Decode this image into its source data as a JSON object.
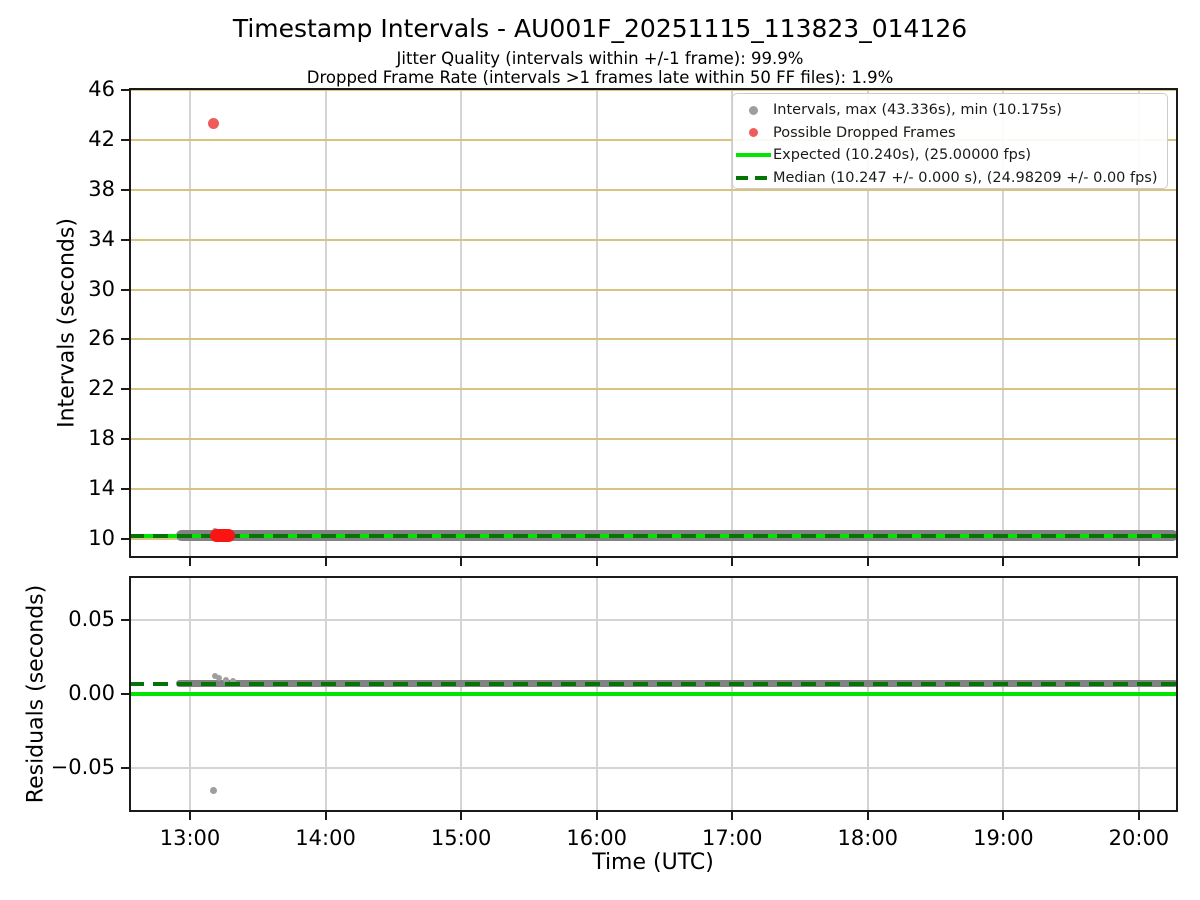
{
  "header": {
    "title": "Timestamp Intervals - AU001F_20251115_113823_014126",
    "subtitle1": "Jitter Quality (intervals within +/-1 frame): 99.9%",
    "subtitle2": "Dropped Frame Rate (intervals >1 frames late within 50 FF files): 1.9%"
  },
  "colors": {
    "expected_line": "#00e600",
    "median_line": "#067306",
    "intervals_point": "#9e9e9e",
    "intervals_dense": "#828282",
    "dropped_point": "#ee5c5c",
    "dropped_dense": "#fb1414",
    "grid_y_intervals": "#d8c47f",
    "grid_vertical": "#d4d4d4",
    "grid_residuals": "#d4d4d4",
    "spine": "#1a1a1a"
  },
  "legend": {
    "items": [
      {
        "label": "Intervals, max (43.336s), min (10.175s)",
        "marker": "dot-gray"
      },
      {
        "label": "Possible Dropped Frames",
        "marker": "dot-red"
      },
      {
        "label": "Expected (10.240s), (25.00000 fps)",
        "marker": "line-solid"
      },
      {
        "label": "Median (10.247 +/- 0.000 s), (24.98209 +/- 0.00 fps)",
        "marker": "line-dashed"
      }
    ]
  },
  "axes": {
    "x": {
      "label": "Time (UTC)",
      "lim_minutes": [
        753,
        1217.3
      ],
      "ticks": [
        {
          "minute": 780,
          "label": "13:00"
        },
        {
          "minute": 840,
          "label": "14:00"
        },
        {
          "minute": 900,
          "label": "15:00"
        },
        {
          "minute": 960,
          "label": "16:00"
        },
        {
          "minute": 1020,
          "label": "17:00"
        },
        {
          "minute": 1080,
          "label": "18:00"
        },
        {
          "minute": 1140,
          "label": "19:00"
        },
        {
          "minute": 1200,
          "label": "20:00"
        }
      ]
    },
    "plot_intervals": {
      "ylabel": "Intervals (seconds)",
      "ylim": [
        8.48,
        46.16
      ],
      "yticks": [
        {
          "v": 10,
          "label": "10"
        },
        {
          "v": 14,
          "label": "14"
        },
        {
          "v": 18,
          "label": "18"
        },
        {
          "v": 22,
          "label": "22"
        },
        {
          "v": 26,
          "label": "26"
        },
        {
          "v": 30,
          "label": "30"
        },
        {
          "v": 34,
          "label": "34"
        },
        {
          "v": 38,
          "label": "38"
        },
        {
          "v": 42,
          "label": "42"
        },
        {
          "v": 46,
          "label": "46"
        }
      ]
    },
    "plot_residuals": {
      "ylabel": "Residuals (seconds)",
      "ylim": [
        -0.0801,
        0.0801
      ],
      "yticks": [
        {
          "v": 0.05,
          "label": "0.05"
        },
        {
          "v": 0.0,
          "label": "0.00"
        },
        {
          "v": -0.05,
          "label": "−0.05"
        }
      ]
    }
  },
  "chart_data": [
    {
      "type": "scatter",
      "title": "Timestamp intervals vs time",
      "xlabel": "Time (UTC)",
      "ylabel": "Intervals (seconds)",
      "xlim": [
        "12:33",
        "20:17"
      ],
      "ylim": [
        8.48,
        46.16
      ],
      "grid": true,
      "legend_position": "upper right",
      "stats": {
        "max_s": 43.336,
        "min_s": 10.175,
        "expected_s": 10.24,
        "expected_fps": 25.0,
        "median_s": 10.247,
        "median_fps": 24.98209,
        "jitter_quality_pct": 99.9,
        "dropped_frame_rate_pct": 1.9
      },
      "series": [
        {
          "name": "Intervals dense run",
          "role": "intervals",
          "style": "band",
          "y": 10.247,
          "x_start": "12:54",
          "x_end": "20:17",
          "x_start_minute": 774,
          "x_end_minute": 1217.3
        },
        {
          "name": "Intervals jitter bumps",
          "role": "intervals",
          "style": "points",
          "points_minute_value": [
            [
              791,
              10.62
            ],
            [
              794,
              10.5
            ],
            [
              798,
              10.44
            ]
          ]
        },
        {
          "name": "Possible dropped frames cluster",
          "role": "dropped",
          "style": "band",
          "y": 10.3,
          "x_start": "13:09",
          "x_end": "13:20",
          "x_start_minute": 789,
          "x_end_minute": 800
        },
        {
          "name": "Possible dropped frame max outlier",
          "role": "dropped",
          "style": "point",
          "minute": 790.5,
          "x": "13:10",
          "y": 43.336
        },
        {
          "name": "Expected",
          "role": "expected",
          "style": "hline",
          "y": 10.24
        },
        {
          "name": "Median",
          "role": "median",
          "style": "hline-dashed",
          "y": 10.247
        }
      ]
    },
    {
      "type": "scatter",
      "title": "Residuals vs time",
      "xlabel": "Time (UTC)",
      "ylabel": "Residuals (seconds)",
      "xlim": [
        "12:33",
        "20:17"
      ],
      "ylim": [
        -0.0801,
        0.0801
      ],
      "grid": true,
      "series": [
        {
          "name": "Residuals dense run",
          "role": "intervals",
          "style": "band",
          "y": 0.007,
          "x_start": "12:54",
          "x_end": "20:17",
          "x_start_minute": 774,
          "x_end_minute": 1217.3
        },
        {
          "name": "Residuals jitter bumps",
          "role": "intervals",
          "style": "points",
          "points_minute_value": [
            [
              791,
              0.0125
            ],
            [
              793,
              0.011
            ],
            [
              796,
              0.0095
            ],
            [
              799,
              0.0085
            ]
          ]
        },
        {
          "name": "Residual negative outlier",
          "role": "intervals",
          "style": "point",
          "minute": 790.5,
          "x": "13:10",
          "y": -0.0655
        },
        {
          "name": "Expected residual",
          "role": "expected",
          "style": "hline",
          "y": 0.0
        },
        {
          "name": "Median residual",
          "role": "median",
          "style": "hline-dashed",
          "y": 0.007
        }
      ]
    }
  ]
}
